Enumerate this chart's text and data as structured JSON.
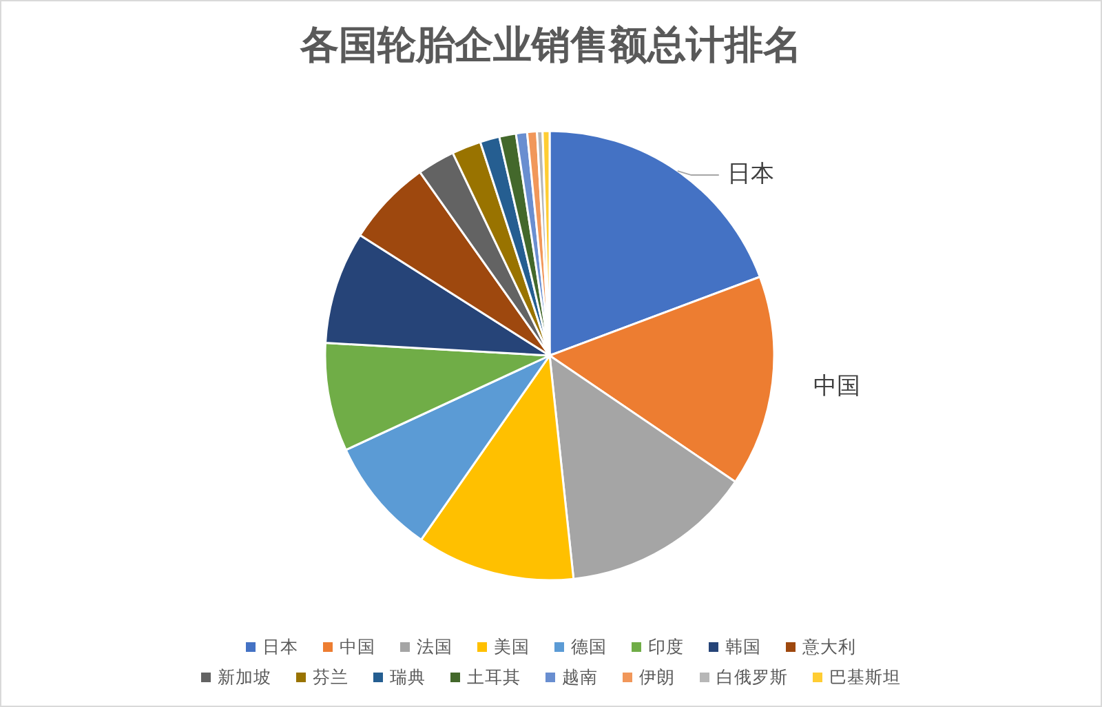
{
  "chart_data": {
    "type": "pie",
    "title": "各国轮胎企业销售额总计排名",
    "categories": [
      "日本",
      "中国",
      "法国",
      "美国",
      "德国",
      "印度",
      "韩国",
      "意大利",
      "新加坡",
      "芬兰",
      "瑞典",
      "土耳其",
      "越南",
      "伊朗",
      "白俄罗斯",
      "巴基斯坦"
    ],
    "values": [
      19.3,
      15.2,
      13.8,
      11.4,
      8.4,
      7.8,
      8.1,
      6.2,
      2.7,
      2.1,
      1.4,
      1.2,
      0.8,
      0.7,
      0.4,
      0.5
    ],
    "colors": [
      "#4472c4",
      "#ed7d31",
      "#a5a5a5",
      "#ffc000",
      "#5b9bd5",
      "#70ad47",
      "#264478",
      "#9e480e",
      "#636363",
      "#997300",
      "#255e91",
      "#43682b",
      "#698ed0",
      "#f1975a",
      "#b7b7b7",
      "#ffcd33"
    ],
    "annotations": [
      {
        "text": "日本",
        "x": "日本"
      },
      {
        "text": "中国",
        "x": "中国"
      }
    ],
    "legend": "bottom"
  }
}
